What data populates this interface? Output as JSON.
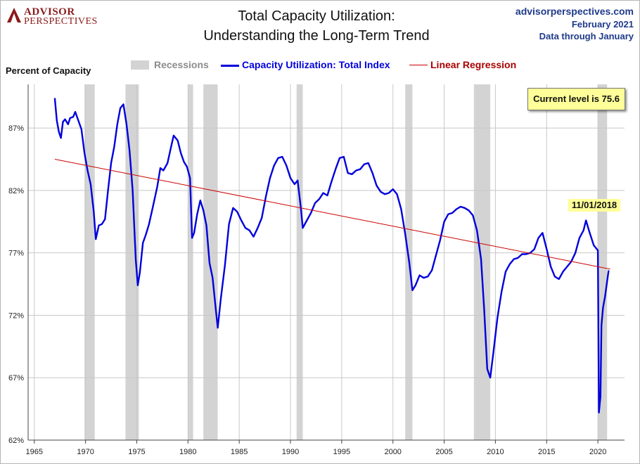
{
  "header": {
    "logo_line1": "ADVISOR",
    "logo_line2": "PERSPECTIVES",
    "title_line1": "Total Capacity Utilization:",
    "title_line2": "Understanding  the Long-Term Trend",
    "source_site": "advisorperspectives.com",
    "source_date": "February 2021",
    "source_through": "Data through January"
  },
  "colors": {
    "series": "#0000dd",
    "regression": "#cc0000",
    "recession": "#d3d3d3",
    "grid": "#c8c8c8",
    "brand": "#8b1a1a"
  },
  "annotations": {
    "current_level": "Current level is 75.6",
    "peak_date": "11/01/2018"
  },
  "chart_data": {
    "type": "line",
    "title": "Total Capacity Utilization: Understanding  the Long-Term Trend",
    "ylabel": "Percent of Capacity",
    "xlim": [
      1964.4,
      2022.6
    ],
    "ylim": [
      62,
      90.5
    ],
    "x_ticks": [
      "1965",
      "1970",
      "1975",
      "1980",
      "1985",
      "1990",
      "1995",
      "2000",
      "2005",
      "2010",
      "2015",
      "2020"
    ],
    "y_ticks": [
      "62%",
      "67%",
      "72%",
      "77%",
      "82%",
      "87%"
    ],
    "y_tick_values": [
      62,
      67,
      72,
      77,
      82,
      87
    ],
    "grid": true,
    "legend": {
      "position": "top",
      "entries": [
        "Recessions",
        "Capacity Utilization: Total Index",
        "Linear Regression"
      ]
    },
    "recessions": [
      [
        1969.9,
        1970.9
      ],
      [
        1973.9,
        1975.2
      ],
      [
        1980.0,
        1980.5
      ],
      [
        1981.5,
        1982.9
      ],
      [
        1990.6,
        1991.2
      ],
      [
        2001.2,
        2001.9
      ],
      [
        2007.9,
        2009.5
      ],
      [
        2020.0,
        2020.9
      ]
    ],
    "series": [
      {
        "name": "Capacity Utilization: Total Index",
        "x": [
          1967.0,
          1967.2,
          1967.4,
          1967.6,
          1967.8,
          1968.0,
          1968.3,
          1968.5,
          1968.8,
          1969.0,
          1969.3,
          1969.6,
          1969.9,
          1970.2,
          1970.5,
          1970.8,
          1971.0,
          1971.3,
          1971.6,
          1971.9,
          1972.2,
          1972.5,
          1972.8,
          1973.1,
          1973.4,
          1973.7,
          1974.0,
          1974.3,
          1974.6,
          1974.9,
          1975.1,
          1975.3,
          1975.6,
          1975.9,
          1976.2,
          1976.6,
          1977.0,
          1977.3,
          1977.6,
          1978.0,
          1978.3,
          1978.6,
          1979.0,
          1979.3,
          1979.6,
          1979.9,
          1980.2,
          1980.4,
          1980.6,
          1980.9,
          1981.2,
          1981.5,
          1981.8,
          1982.1,
          1982.4,
          1982.7,
          1982.9,
          1983.2,
          1983.6,
          1984.0,
          1984.4,
          1984.8,
          1985.2,
          1985.6,
          1986.0,
          1986.4,
          1986.8,
          1987.2,
          1987.6,
          1988.0,
          1988.4,
          1988.8,
          1989.2,
          1989.6,
          1990.0,
          1990.4,
          1990.7,
          1991.0,
          1991.2,
          1991.6,
          1992.0,
          1992.4,
          1992.8,
          1993.2,
          1993.6,
          1994.0,
          1994.4,
          1994.8,
          1995.2,
          1995.6,
          1996.0,
          1996.4,
          1996.8,
          1997.2,
          1997.6,
          1998.0,
          1998.4,
          1998.8,
          1999.2,
          1999.6,
          2000.0,
          2000.4,
          2000.8,
          2001.2,
          2001.6,
          2001.9,
          2002.2,
          2002.6,
          2003.0,
          2003.4,
          2003.8,
          2004.2,
          2004.6,
          2005.0,
          2005.4,
          2005.8,
          2006.2,
          2006.6,
          2007.0,
          2007.4,
          2007.8,
          2008.2,
          2008.6,
          2008.9,
          2009.2,
          2009.5,
          2009.8,
          2010.2,
          2010.6,
          2011.0,
          2011.4,
          2011.8,
          2012.2,
          2012.6,
          2013.0,
          2013.4,
          2013.8,
          2014.2,
          2014.6,
          2015.0,
          2015.4,
          2015.8,
          2016.2,
          2016.6,
          2017.0,
          2017.4,
          2017.8,
          2018.2,
          2018.6,
          2018.84,
          2019.2,
          2019.6,
          2020.0,
          2020.1,
          2020.25,
          2020.35,
          2020.5,
          2020.7,
          2020.9,
          2021.05
        ],
        "values": [
          89.4,
          87.6,
          86.7,
          86.2,
          87.5,
          87.7,
          87.3,
          87.8,
          87.9,
          88.3,
          87.6,
          86.9,
          85.0,
          83.6,
          82.5,
          80.3,
          78.1,
          79.2,
          79.3,
          79.7,
          82.0,
          84.2,
          85.5,
          87.3,
          88.6,
          88.9,
          87.3,
          85.2,
          82.0,
          76.5,
          74.4,
          75.4,
          77.8,
          78.5,
          79.3,
          80.8,
          82.3,
          83.8,
          83.6,
          84.2,
          85.3,
          86.4,
          86.0,
          85.0,
          84.3,
          83.9,
          83.0,
          78.2,
          78.6,
          80.1,
          81.2,
          80.4,
          79.2,
          76.2,
          75.0,
          72.6,
          71.0,
          73.3,
          76.0,
          79.3,
          80.6,
          80.3,
          79.6,
          79.0,
          78.8,
          78.3,
          79.0,
          79.8,
          81.5,
          83.0,
          84.0,
          84.6,
          84.7,
          84.0,
          83.0,
          82.5,
          82.8,
          80.7,
          79.0,
          79.6,
          80.2,
          81.0,
          81.3,
          81.8,
          81.6,
          82.7,
          83.7,
          84.6,
          84.7,
          83.4,
          83.3,
          83.6,
          83.7,
          84.1,
          84.2,
          83.4,
          82.4,
          81.9,
          81.7,
          81.8,
          82.1,
          81.7,
          80.5,
          78.5,
          76.2,
          74.0,
          74.4,
          75.2,
          75.0,
          75.1,
          75.6,
          76.8,
          78.0,
          79.5,
          80.1,
          80.2,
          80.5,
          80.7,
          80.6,
          80.4,
          80.0,
          78.8,
          76.5,
          72.5,
          67.7,
          67.0,
          69.0,
          71.8,
          73.9,
          75.5,
          76.1,
          76.5,
          76.6,
          76.9,
          76.9,
          77.0,
          77.3,
          78.2,
          78.6,
          77.3,
          75.9,
          75.1,
          74.9,
          75.5,
          75.9,
          76.3,
          77.0,
          78.2,
          78.8,
          79.6,
          78.6,
          77.6,
          77.2,
          64.2,
          65.5,
          71.2,
          72.6,
          73.5,
          74.7,
          75.6
        ]
      },
      {
        "name": "Linear Regression",
        "x": [
          1967.0,
          2021.2
        ],
        "values": [
          84.5,
          75.7
        ]
      }
    ]
  }
}
